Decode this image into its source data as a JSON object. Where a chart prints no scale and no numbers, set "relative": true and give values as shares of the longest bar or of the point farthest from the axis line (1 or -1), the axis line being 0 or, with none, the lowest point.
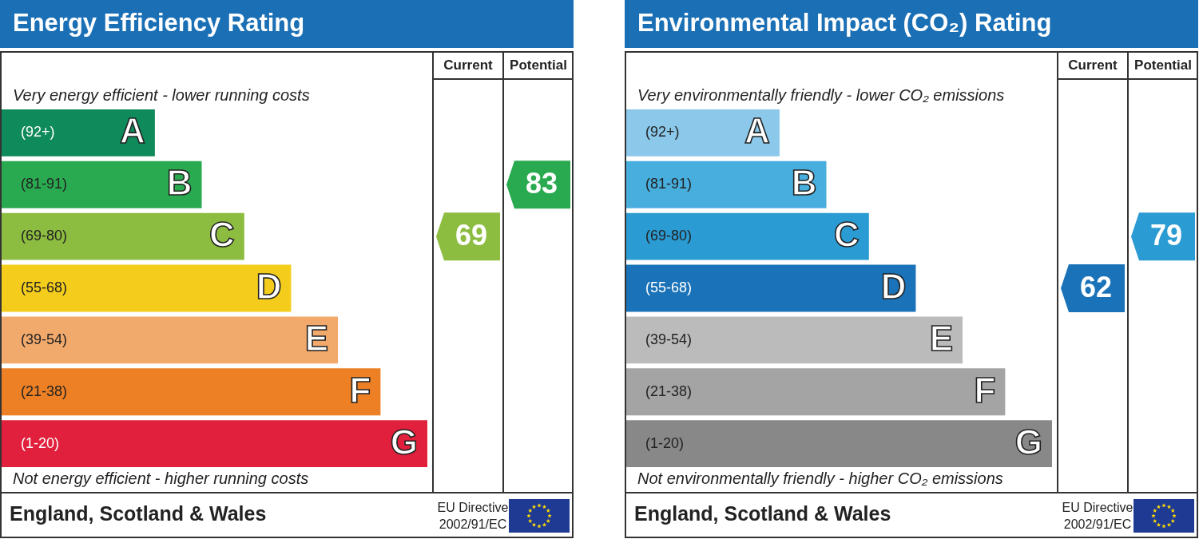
{
  "chart_data": [
    {
      "type": "bar",
      "orientation": "horizontal",
      "relative": true,
      "title": "Energy Efficiency Rating",
      "categories": [
        "A",
        "B",
        "C",
        "D",
        "E",
        "F",
        "G"
      ],
      "values": [
        0.36,
        0.47,
        0.57,
        0.68,
        0.79,
        0.89,
        1
      ],
      "colors": [
        "#0f8a5a",
        "#2aaa50",
        "#8dbd40",
        "#f4cd1c",
        "#f2aa6c",
        "#ed8025",
        "#e0203c"
      ],
      "annotations": [
        "Very energy efficient - lower running costs",
        "Not energy efficient - higher running costs",
        "Current",
        "Potential",
        "England, Scotland & Wales",
        "EU Directive",
        "2002/91/EC",
        "69",
        "83",
        "(92+)",
        "(81-91)",
        "(69-80)",
        "(55-68)",
        "(39-54)",
        "(21-38)",
        "(1-20)"
      ]
    },
    {
      "type": "bar",
      "orientation": "horizontal",
      "relative": true,
      "title": "Environmental Impact (CO₂) Rating",
      "categories": [
        "A",
        "B",
        "C",
        "D",
        "E",
        "F",
        "G"
      ],
      "values": [
        0.36,
        0.47,
        0.57,
        0.68,
        0.79,
        0.89,
        1
      ],
      "colors": [
        "#8bc8ea",
        "#48aede",
        "#2b9bd3",
        "#1a72b8",
        "#bbbbbb",
        "#a4a4a4",
        "#888888"
      ],
      "annotations": [
        "Very environmentally friendly - lower CO₂ emissions",
        "Not environmentally friendly - higher CO₂ emissions",
        "Current",
        "Potential",
        "England, Scotland & Wales",
        "EU Directive",
        "2002/91/EC",
        "62",
        "79",
        "(92+)",
        "(81-91)",
        "(69-80)",
        "(55-68)",
        "(39-54)",
        "(21-38)",
        "(1-20)"
      ]
    }
  ]
}
